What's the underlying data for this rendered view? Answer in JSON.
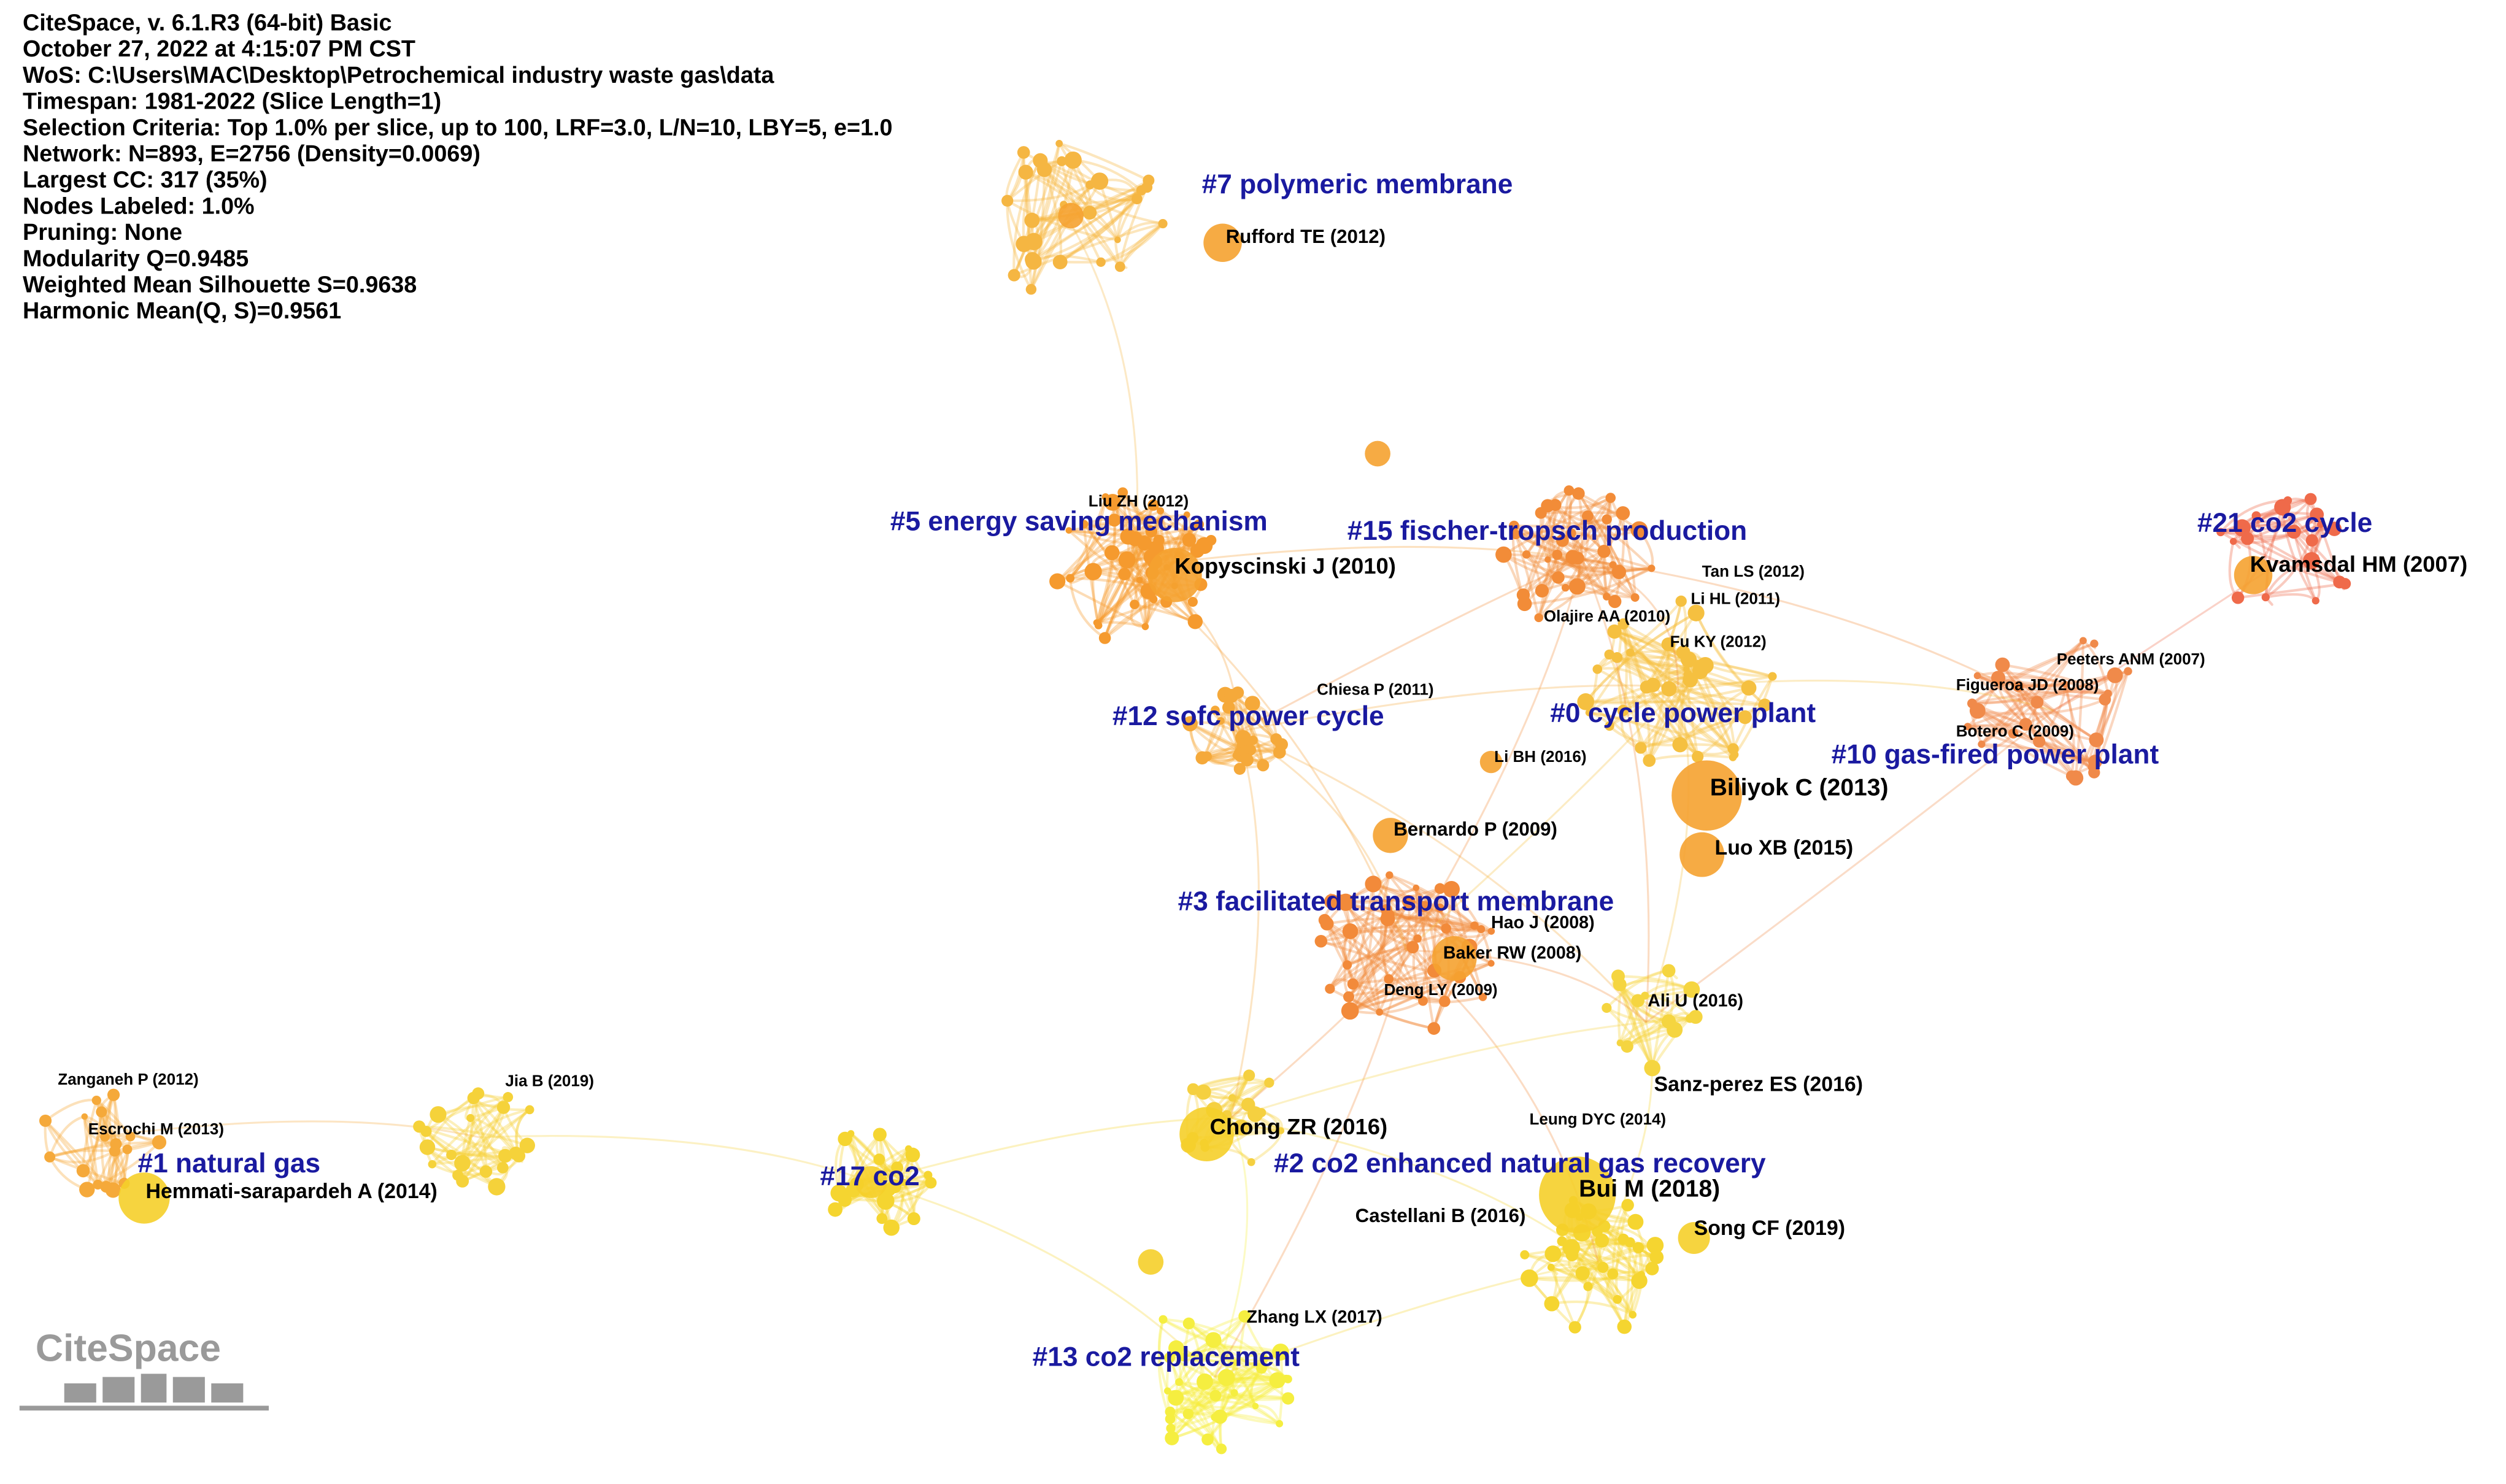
{
  "info": [
    "CiteSpace, v. 6.1.R3 (64-bit) Basic",
    "October 27, 2022 at 4:15:07 PM CST",
    "WoS: C:\\Users\\MAC\\Desktop\\Petrochemical industry waste gas\\data",
    "Timespan: 1981-2022 (Slice Length=1)",
    "Selection Criteria: Top 1.0% per slice, up to 100, LRF=3.0, L/N=10, LBY=5, e=1.0",
    "Network: N=893, E=2756 (Density=0.0069)",
    "Largest CC: 317 (35%)",
    "Nodes Labeled: 1.0%",
    "Pruning: None",
    "Modularity Q=0.9485",
    "Weighted Mean Silhouette S=0.9638",
    "Harmonic Mean(Q, S)=0.9561"
  ],
  "clusters": [
    "#7 polymeric membrane",
    "#5 energy saving mechanism",
    "#15 fischer-tropsch production",
    "#21 co2 cycle",
    "#12 sofc power cycle",
    "#0 cycle power plant",
    "#10 gas-fired power plant",
    "#3 facilitated transport membrane",
    "#1 natural gas",
    "#17 co2",
    "#2 co2 enhanced natural gas recovery",
    "#13 co2 replacement"
  ],
  "nodes": [
    "Rufford TE (2012)",
    "Liu ZH (2012)",
    "Kopyscinski J (2010)",
    "Tan LS (2012)",
    "Li HL (2011)",
    "Olajire AA (2010)",
    "Fu KY (2012)",
    "Kvamsdal HM (2007)",
    "Peeters ANM (2007)",
    "Figueroa JD (2008)",
    "Botero C (2009)",
    "Chiesa P (2011)",
    "Li BH (2016)",
    "Biliyok C (2013)",
    "Bernardo P (2009)",
    "Luo XB (2015)",
    "Hao J (2008)",
    "Baker RW (2008)",
    "Deng LY (2009)",
    "Ali U (2016)",
    "Zanganeh P (2012)",
    "Jia B (2019)",
    "Sanz-perez ES (2016)",
    "Leung DYC (2014)",
    "Escrochi M (2013)",
    "Chong ZR (2016)",
    "Hemmati-sarapardeh A (2014)",
    "Bui M (2018)",
    "Castellani B (2016)",
    "Song CF (2019)",
    "Zhang LX (2017)"
  ],
  "logo": "CiteSpace"
}
